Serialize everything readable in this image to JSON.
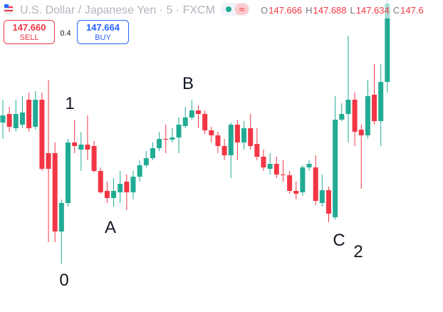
{
  "header": {
    "title": "U.S. Dollar / Japanese Yen · 5 · FXCM",
    "toggle": "≈",
    "ohlc": [
      {
        "letter": "O",
        "value": 147.666
      },
      {
        "letter": "H",
        "value": 147.688
      },
      {
        "letter": "L",
        "value": 147.634
      },
      {
        "letter": "C",
        "value": "147.6"
      }
    ]
  },
  "trade": {
    "sell_price": "147.660",
    "sell_label": "SELL",
    "spread": "0.4",
    "buy_price": "147.664",
    "buy_label": "BUY"
  },
  "chart_data": {
    "type": "candlestick",
    "up_color": "#22ab94",
    "down_color": "#f23645",
    "ylim": [
      147.262,
      147.7
    ],
    "open": [
      147.528,
      147.54,
      147.52,
      147.525,
      147.56,
      147.522,
      147.56,
      147.485,
      147.485,
      147.375,
      147.415,
      147.5,
      147.49,
      147.497,
      147.495,
      147.46,
      147.432,
      147.422,
      147.43,
      147.445,
      147.43,
      147.452,
      147.468,
      147.478,
      147.492,
      147.505,
      147.504,
      147.507,
      147.523,
      147.535,
      147.545,
      147.54,
      147.517,
      147.51,
      147.495,
      147.482,
      147.525,
      147.5,
      147.52,
      147.498,
      147.48,
      147.463,
      147.47,
      147.455,
      147.454,
      147.432,
      147.43,
      147.465,
      147.465,
      147.415,
      147.433,
      147.395,
      147.532,
      147.54,
      147.56,
      147.518,
      147.51,
      147.567,
      147.53,
      147.585
    ],
    "high": [
      147.56,
      147.55,
      147.56,
      147.565,
      147.57,
      147.572,
      147.57,
      147.588,
      147.5,
      147.42,
      147.505,
      147.532,
      147.515,
      147.538,
      147.502,
      147.465,
      147.445,
      147.45,
      147.46,
      147.455,
      147.46,
      147.475,
      147.488,
      147.5,
      147.515,
      147.525,
      147.52,
      147.535,
      147.55,
      147.56,
      147.552,
      147.545,
      147.522,
      147.515,
      147.505,
      147.528,
      147.532,
      147.53,
      147.54,
      147.52,
      147.49,
      147.485,
      147.48,
      147.475,
      147.46,
      147.445,
      147.468,
      147.475,
      147.482,
      147.455,
      147.438,
      147.565,
      147.555,
      147.65,
      147.57,
      147.525,
      147.588,
      147.61,
      147.61,
      147.7
    ],
    "low": [
      147.505,
      147.515,
      147.515,
      147.52,
      147.515,
      147.518,
      147.46,
      147.36,
      147.36,
      147.33,
      147.41,
      147.485,
      147.46,
      147.475,
      147.458,
      147.428,
      147.415,
      147.41,
      147.415,
      147.405,
      147.42,
      147.445,
      147.465,
      147.475,
      147.488,
      147.485,
      147.5,
      147.485,
      147.52,
      147.532,
      147.52,
      147.512,
      147.5,
      147.485,
      147.475,
      147.45,
      147.475,
      147.49,
      147.49,
      147.475,
      147.46,
      147.455,
      147.45,
      147.445,
      147.428,
      147.42,
      147.425,
      147.46,
      147.412,
      147.41,
      147.388,
      147.392,
      147.53,
      147.5,
      147.495,
      147.435,
      147.505,
      147.525,
      147.495,
      147.57
    ],
    "close": [
      147.538,
      147.522,
      147.54,
      147.542,
      147.52,
      147.56,
      147.463,
      147.463,
      147.375,
      147.415,
      147.5,
      147.495,
      147.497,
      147.49,
      147.46,
      147.43,
      147.422,
      147.432,
      147.442,
      147.43,
      147.452,
      147.468,
      147.478,
      147.492,
      147.505,
      147.504,
      147.507,
      147.525,
      147.535,
      147.545,
      147.54,
      147.517,
      147.51,
      147.495,
      147.482,
      147.525,
      147.5,
      147.52,
      147.495,
      147.48,
      147.465,
      147.47,
      147.455,
      147.454,
      147.432,
      147.428,
      147.465,
      147.47,
      147.418,
      147.433,
      147.4,
      147.532,
      147.54,
      147.56,
      147.515,
      147.51,
      147.565,
      147.53,
      147.585,
      147.695
    ],
    "annotations": [
      "1",
      "0",
      "A",
      "B",
      "C",
      "2"
    ]
  }
}
